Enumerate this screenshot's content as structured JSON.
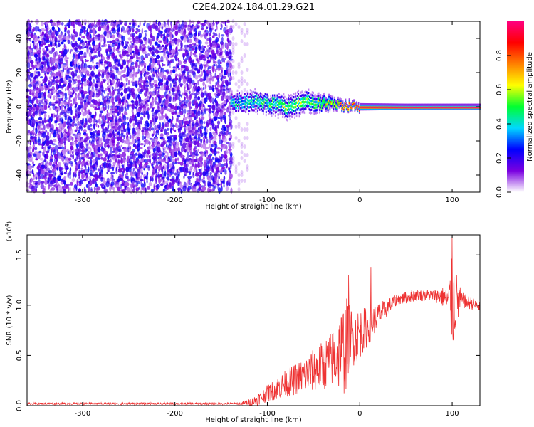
{
  "figure": {
    "title": "C2E4.2024.184.01.29.G21"
  },
  "chart_data": [
    {
      "type": "heatmap",
      "xlabel": "Height of straight line (km)",
      "ylabel": "Frequency (Hz)",
      "xlim": [
        -360,
        130
      ],
      "ylim": [
        -50,
        50
      ],
      "xticks": [
        -300,
        -200,
        -100,
        0,
        100
      ],
      "yticks": [
        -40,
        -20,
        0,
        20,
        40
      ],
      "colorbar": {
        "label": "Normalized spectral amplitude",
        "range": [
          0,
          1
        ],
        "ticks": [
          "0.0",
          "0.2",
          "0.4",
          "0.6",
          "0.8"
        ],
        "colormap": "rainbow",
        "colors": [
          "#ffffff",
          "#7a00e0",
          "#0000ff",
          "#00d8ff",
          "#00ff30",
          "#ffff00",
          "#ff8000",
          "#ff0000",
          "#ff0080"
        ]
      },
      "noise_region": {
        "height_range": [
          -360,
          -140
        ],
        "frequency_range": [
          -50,
          50
        ],
        "amplitude_range": [
          0.05,
          0.25
        ]
      },
      "signal_track": [
        {
          "height": -140,
          "center_hz": 2,
          "spread_hz": 5,
          "peak_amplitude": 0.4
        },
        {
          "height": -120,
          "center_hz": 3,
          "spread_hz": 6,
          "peak_amplitude": 0.45
        },
        {
          "height": -100,
          "center_hz": 2,
          "spread_hz": 5,
          "peak_amplitude": 0.5
        },
        {
          "height": -80,
          "center_hz": 0,
          "spread_hz": 6,
          "peak_amplitude": 0.55
        },
        {
          "height": -60,
          "center_hz": 3,
          "spread_hz": 6,
          "peak_amplitude": 0.55
        },
        {
          "height": -40,
          "center_hz": 2,
          "spread_hz": 4,
          "peak_amplitude": 0.6
        },
        {
          "height": -20,
          "center_hz": 1,
          "spread_hz": 2,
          "peak_amplitude": 0.8
        },
        {
          "height": 0,
          "center_hz": 0,
          "spread_hz": 1.5,
          "peak_amplitude": 0.95
        },
        {
          "height": 50,
          "center_hz": 0,
          "spread_hz": 1.2,
          "peak_amplitude": 1.0
        },
        {
          "height": 130,
          "center_hz": 0,
          "spread_hz": 1.2,
          "peak_amplitude": 1.0
        }
      ]
    },
    {
      "type": "line",
      "xlabel": "Height of straight line (km)",
      "ylabel": "SNR (10 * v/v)",
      "yscale_label": "(x10",
      "yscale_exp": "4",
      "yscale_close": ")",
      "xlim": [
        -360,
        130
      ],
      "ylim": [
        0,
        1.7
      ],
      "xticks": [
        -300,
        -200,
        -100,
        0,
        100
      ],
      "yticks": [
        "0.0",
        "0.5",
        "1.0",
        "1.5"
      ],
      "series": [
        {
          "color": "#ee3333",
          "envelope": {
            "x": [
              -360,
              -130,
              -115,
              -100,
              -80,
              -60,
              -40,
              -25,
              -15,
              -10,
              -5,
              0,
              10,
              20,
              30,
              40,
              60,
              80,
              90,
              95,
              100,
              110,
              120,
              130
            ],
            "y": [
              0.02,
              0.02,
              0.04,
              0.12,
              0.22,
              0.3,
              0.4,
              0.5,
              0.6,
              0.68,
              0.68,
              0.72,
              0.8,
              0.9,
              0.98,
              1.05,
              1.1,
              1.1,
              1.08,
              1.05,
              1.02,
              1.05,
              1.02,
              0.98
            ]
          },
          "noise_amplitude": {
            "x": [
              -360,
              -130,
              -110,
              -60,
              -30,
              -15,
              -10,
              0,
              20,
              40,
              80,
              95,
              100,
              110,
              130
            ],
            "y": [
              0.01,
              0.01,
              0.06,
              0.18,
              0.28,
              0.5,
              0.3,
              0.25,
              0.12,
              0.06,
              0.06,
              0.12,
              0.5,
              0.08,
              0.05
            ]
          },
          "spikes": [
            {
              "x": -12,
              "y": 1.3
            },
            {
              "x": 12,
              "y": 1.38
            },
            {
              "x": 100,
              "y": 1.68
            }
          ]
        }
      ]
    }
  ]
}
